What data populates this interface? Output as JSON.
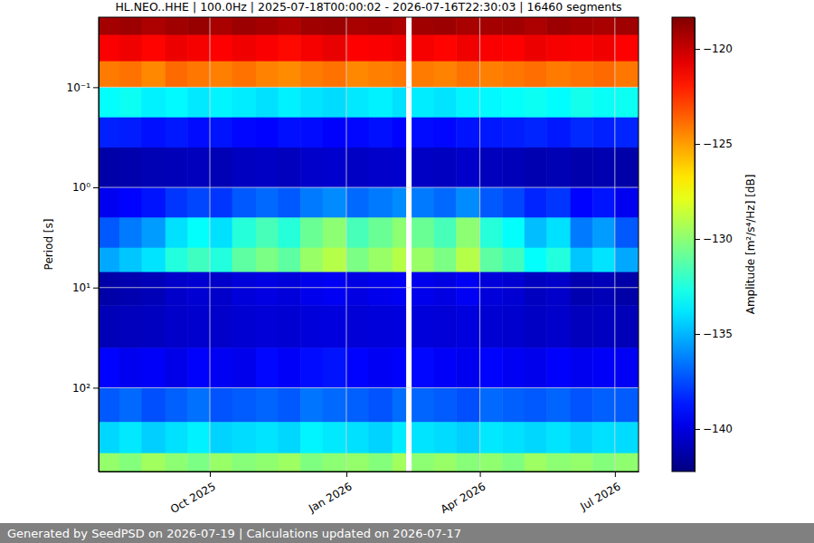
{
  "chart_data": {
    "type": "heatmap",
    "title": "HL.NEO..HHE | 100.0Hz | 2025-07-18T00:00:02 - 2026-07-16T22:30:03 | 16460 segments",
    "ylabel": "Period [s]",
    "footer": "Generated by SeedPSD on 2026-07-19 | Calculations updated on 2026-07-17",
    "log": "y",
    "grid": true,
    "xlim": [
      "2025-07-18T00:00:02",
      "2026-07-16T22:30:03"
    ],
    "xticks": [
      {
        "value": "2025-10-01",
        "label": "Oct 2025"
      },
      {
        "value": "2026-01-01",
        "label": "Jan 2026"
      },
      {
        "value": "2026-04-01",
        "label": "Apr 2026"
      },
      {
        "value": "2026-07-01",
        "label": "Jul 2026"
      }
    ],
    "ylim": [
      0.02,
      686
    ],
    "yticks": [
      {
        "value": 0.1,
        "label": "10⁻¹"
      },
      {
        "value": 1,
        "label": "10⁰"
      },
      {
        "value": 10,
        "label": "10¹"
      },
      {
        "value": 100,
        "label": "10²"
      }
    ],
    "x_bins": [
      "2025-07-18T00:00:02",
      "2025-08-01",
      "2025-08-16",
      "2025-09-01",
      "2025-09-16",
      "2025-10-01",
      "2025-10-16",
      "2025-11-01",
      "2025-11-16",
      "2025-12-01",
      "2025-12-16",
      "2026-01-01",
      "2026-01-16",
      "2026-02-01",
      "2026-02-10",
      "2026-02-14",
      "2026-03-01",
      "2026-03-16",
      "2026-04-01",
      "2026-04-16",
      "2026-05-01",
      "2026-05-16",
      "2026-06-01",
      "2026-06-16",
      "2026-07-01",
      "2026-07-16T22:30:03"
    ],
    "y_bins": [
      0.02,
      0.03,
      0.055,
      0.1,
      0.2,
      0.4,
      1,
      2,
      4,
      7,
      15,
      40,
      100,
      220,
      450,
      686
    ],
    "values": [
      [
        -119.2,
        -119.0,
        -119.4,
        -119.1,
        -118.9,
        -119.3,
        -119.0,
        -119.2,
        -119.5,
        -119.1,
        -119.0,
        -119.3,
        -119.2,
        -119.4,
        null,
        -119.1,
        -119.0,
        -119.3,
        -119.2,
        -119.1,
        -119.4,
        -119.0,
        -119.2,
        -119.3,
        -119.1
      ],
      [
        -121.2,
        -121.0,
        -121.4,
        -120.9,
        -121.1,
        -121.3,
        -121.0,
        -121.2,
        -121.5,
        -121.1,
        -120.8,
        -121.3,
        -121.2,
        -121.0,
        null,
        -121.1,
        -121.4,
        -121.0,
        -121.2,
        -121.3,
        -120.9,
        -121.1,
        -121.2,
        -121.0,
        -121.3
      ],
      [
        -124.2,
        -124.0,
        -124.5,
        -123.8,
        -124.1,
        -124.3,
        -124.0,
        -124.4,
        -124.6,
        -124.2,
        -124.0,
        -124.5,
        -124.3,
        -124.1,
        null,
        -124.2,
        -124.4,
        -124.0,
        -124.3,
        -124.1,
        -123.9,
        -124.2,
        -124.0,
        -123.8,
        -124.1
      ],
      [
        -133.2,
        -133.0,
        -133.6,
        -133.4,
        -133.8,
        -133.5,
        -133.7,
        -134.0,
        -133.6,
        -133.9,
        -134.1,
        -133.8,
        -133.6,
        -134.0,
        null,
        -133.7,
        -133.9,
        -133.5,
        -133.4,
        -133.2,
        -133.0,
        -133.3,
        -132.8,
        -133.1,
        -133.0
      ],
      [
        -138.5,
        -138.6,
        -138.9,
        -138.7,
        -139.0,
        -138.8,
        -139.1,
        -139.2,
        -138.9,
        -139.0,
        -139.3,
        -139.1,
        -138.9,
        -139.2,
        null,
        -139.0,
        -139.1,
        -138.8,
        -138.7,
        -138.6,
        -138.4,
        -138.7,
        -138.3,
        -138.5,
        -138.4
      ],
      [
        -141.3,
        -141.2,
        -141.0,
        -140.9,
        -140.8,
        -141.0,
        -140.7,
        -140.6,
        -140.8,
        -140.5,
        -140.4,
        -140.6,
        -140.5,
        -140.4,
        null,
        -140.6,
        -140.7,
        -140.5,
        -140.8,
        -140.9,
        -141.1,
        -141.0,
        -141.2,
        -141.1,
        -141.3
      ],
      [
        -139.6,
        -139.2,
        -138.8,
        -138.0,
        -137.6,
        -138.0,
        -137.2,
        -136.8,
        -137.2,
        -136.4,
        -136.0,
        -136.8,
        -136.4,
        -136.0,
        null,
        -136.4,
        -136.8,
        -136.0,
        -137.2,
        -137.6,
        -138.4,
        -138.0,
        -139.2,
        -138.8,
        -139.6
      ],
      [
        -137.2,
        -136.4,
        -135.6,
        -134.0,
        -133.2,
        -134.0,
        -132.4,
        -131.6,
        -132.4,
        -130.8,
        -130.0,
        -131.6,
        -130.8,
        -130.0,
        null,
        -130.8,
        -131.6,
        -130.0,
        -132.4,
        -133.2,
        -134.8,
        -134.0,
        -136.4,
        -135.6,
        -137.2
      ],
      [
        -135.3,
        -134.6,
        -133.9,
        -132.5,
        -131.8,
        -132.5,
        -131.1,
        -130.4,
        -131.1,
        -129.7,
        -129.0,
        -130.4,
        -129.7,
        -129.0,
        null,
        -129.7,
        -130.4,
        -129.0,
        -131.1,
        -131.8,
        -133.2,
        -132.5,
        -134.6,
        -133.9,
        -135.3
      ],
      [
        -141.3,
        -141.1,
        -140.9,
        -140.5,
        -140.3,
        -140.5,
        -140.1,
        -139.9,
        -140.1,
        -139.7,
        -139.5,
        -139.9,
        -139.7,
        -139.5,
        null,
        -139.7,
        -139.9,
        -139.5,
        -140.1,
        -140.3,
        -140.7,
        -140.5,
        -141.1,
        -140.9,
        -141.3
      ],
      [
        -140.9,
        -140.8,
        -140.7,
        -140.5,
        -140.4,
        -140.5,
        -140.3,
        -140.2,
        -140.3,
        -140.1,
        -140.0,
        -140.2,
        -140.1,
        -140.0,
        null,
        -140.1,
        -140.2,
        -140.0,
        -140.3,
        -140.4,
        -140.6,
        -140.5,
        -140.8,
        -140.7,
        -140.9
      ],
      [
        -139.2,
        -139.6,
        -139.4,
        -139.8,
        -139.3,
        -139.5,
        -139.7,
        -139.1,
        -139.4,
        -139.0,
        -138.8,
        -139.2,
        -139.5,
        -139.3,
        null,
        -139.1,
        -139.4,
        -139.6,
        -139.2,
        -139.5,
        -139.7,
        -139.3,
        -139.6,
        -139.4,
        -139.5
      ],
      [
        -137.2,
        -136.8,
        -137.4,
        -137.0,
        -136.6,
        -137.3,
        -137.1,
        -136.9,
        -137.2,
        -136.5,
        -136.8,
        -137.0,
        -137.3,
        -136.7,
        null,
        -136.9,
        -137.1,
        -137.4,
        -136.8,
        -137.0,
        -137.2,
        -136.9,
        -137.3,
        -137.0,
        -137.1
      ],
      [
        -134.2,
        -133.8,
        -134.4,
        -134.0,
        -133.6,
        -134.3,
        -134.1,
        -133.9,
        -134.2,
        -133.5,
        -133.8,
        -134.0,
        -134.3,
        -133.7,
        null,
        -133.9,
        -134.1,
        -134.4,
        -133.8,
        -134.0,
        -134.2,
        -133.9,
        -134.3,
        -134.0,
        -134.1
      ],
      [
        -129.8,
        -130.2,
        -129.5,
        -130.0,
        -130.4,
        -129.7,
        -130.1,
        -129.9,
        -129.6,
        -130.3,
        -130.0,
        -129.8,
        -130.2,
        -129.5,
        null,
        -130.0,
        -129.7,
        -130.1,
        -129.9,
        -130.3,
        -129.6,
        -130.0,
        -129.8,
        -130.2,
        -129.9
      ]
    ],
    "colorbar": {
      "label": "Amplitude [m²/s⁴/Hz] [dB]",
      "range": [
        -142.24,
        -118.33
      ],
      "ticks": [
        {
          "value": -140,
          "label": "−140"
        },
        {
          "value": -135,
          "label": "−135"
        },
        {
          "value": -130,
          "label": "−130"
        },
        {
          "value": -125,
          "label": "−125"
        },
        {
          "value": -120,
          "label": "−120"
        }
      ]
    }
  }
}
